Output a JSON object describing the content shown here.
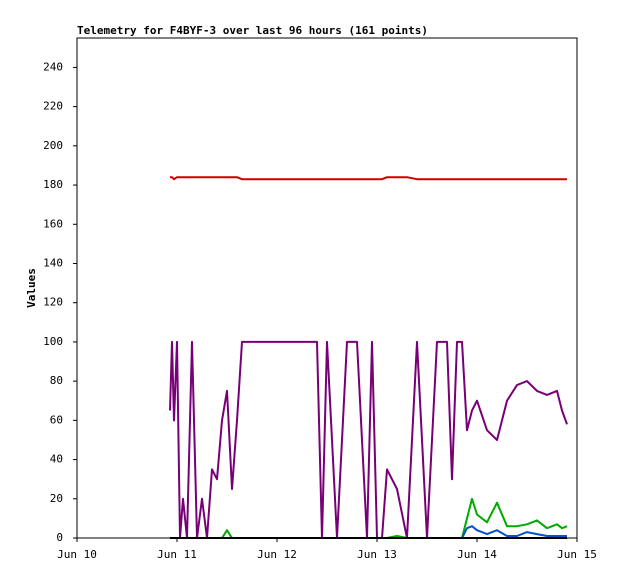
{
  "chart_data": {
    "type": "line",
    "title": "Telemetry for F4BYF-3 over last 96 hours (161 points)",
    "ylabel": "Values",
    "x": [
      10.93,
      10.95,
      10.97,
      11.0,
      11.03,
      11.06,
      11.1,
      11.15,
      11.2,
      11.25,
      11.3,
      11.35,
      11.4,
      11.45,
      11.5,
      11.55,
      11.6,
      11.65,
      11.7,
      12.0,
      12.4,
      12.45,
      12.5,
      12.6,
      12.7,
      12.8,
      12.9,
      12.95,
      13.0,
      13.05,
      13.1,
      13.2,
      13.3,
      13.4,
      13.5,
      13.6,
      13.7,
      13.75,
      13.8,
      13.85,
      13.9,
      13.95,
      14.0,
      14.1,
      14.2,
      14.3,
      14.4,
      14.5,
      14.6,
      14.7,
      14.8,
      14.85,
      14.9
    ],
    "series": [
      {
        "color": "#cc0000",
        "values": [
          184,
          184,
          183,
          184,
          184,
          184,
          184,
          184,
          184,
          184,
          184,
          184,
          184,
          184,
          184,
          184,
          184,
          183,
          183,
          183,
          183,
          183,
          183,
          183,
          183,
          183,
          183,
          183,
          183,
          183,
          184,
          184,
          184,
          183,
          183,
          183,
          183,
          183,
          183,
          183,
          183,
          183,
          183,
          183,
          183,
          183,
          183,
          183,
          183,
          183,
          183,
          183,
          183
        ]
      },
      {
        "color": "#770077",
        "values": [
          65,
          100,
          60,
          100,
          0,
          20,
          0,
          100,
          0,
          20,
          0,
          35,
          30,
          60,
          75,
          25,
          60,
          100,
          100,
          100,
          100,
          0,
          100,
          0,
          100,
          100,
          0,
          100,
          0,
          0,
          35,
          25,
          0,
          100,
          0,
          100,
          100,
          30,
          100,
          100,
          55,
          65,
          70,
          55,
          50,
          70,
          78,
          80,
          75,
          73,
          75,
          65,
          58
        ]
      },
      {
        "color": "#00aa00",
        "values": [
          0,
          0,
          0,
          0,
          0,
          0,
          0,
          0,
          0,
          0,
          0,
          0,
          0,
          0,
          4,
          0,
          0,
          0,
          0,
          0,
          0,
          0,
          0,
          0,
          0,
          0,
          0,
          0,
          0,
          0,
          0,
          1,
          0,
          0,
          0,
          0,
          0,
          0,
          0,
          0,
          10,
          20,
          12,
          8,
          18,
          6,
          6,
          7,
          9,
          5,
          7,
          5,
          6
        ]
      },
      {
        "color": "#0055cc",
        "values": [
          0,
          0,
          0,
          0,
          0,
          0,
          0,
          0,
          0,
          0,
          0,
          0,
          0,
          0,
          0,
          0,
          0,
          0,
          0,
          0,
          0,
          0,
          0,
          0,
          0,
          0,
          0,
          0,
          0,
          0,
          0,
          0,
          0,
          0,
          0,
          0,
          0,
          0,
          0,
          0,
          5,
          6,
          4,
          2,
          4,
          1,
          1,
          3,
          2,
          1,
          1,
          1,
          1
        ]
      },
      {
        "color": "#000000",
        "values": [
          0,
          0,
          0,
          0,
          0,
          0,
          0,
          0,
          0,
          0,
          0,
          0,
          0,
          0,
          0,
          0,
          0,
          0,
          0,
          0,
          0,
          0,
          0,
          0,
          0,
          0,
          0,
          0,
          0,
          0,
          0,
          0,
          0,
          0,
          0,
          0,
          0,
          0,
          0,
          0,
          0,
          0,
          0,
          0,
          0,
          0,
          0,
          0,
          0,
          0,
          0,
          0,
          0
        ]
      }
    ],
    "xlim": [
      10,
      15
    ],
    "xticks": [
      {
        "value": 10,
        "label": "Jun 10"
      },
      {
        "value": 11,
        "label": "Jun 11"
      },
      {
        "value": 12,
        "label": "Jun 12"
      },
      {
        "value": 13,
        "label": "Jun 13"
      },
      {
        "value": 14,
        "label": "Jun 14"
      },
      {
        "value": 15,
        "label": "Jun 15"
      }
    ],
    "ylim": [
      0,
      255
    ],
    "yticks": [
      0,
      20,
      40,
      60,
      80,
      100,
      120,
      140,
      160,
      180,
      200,
      220,
      240
    ]
  }
}
